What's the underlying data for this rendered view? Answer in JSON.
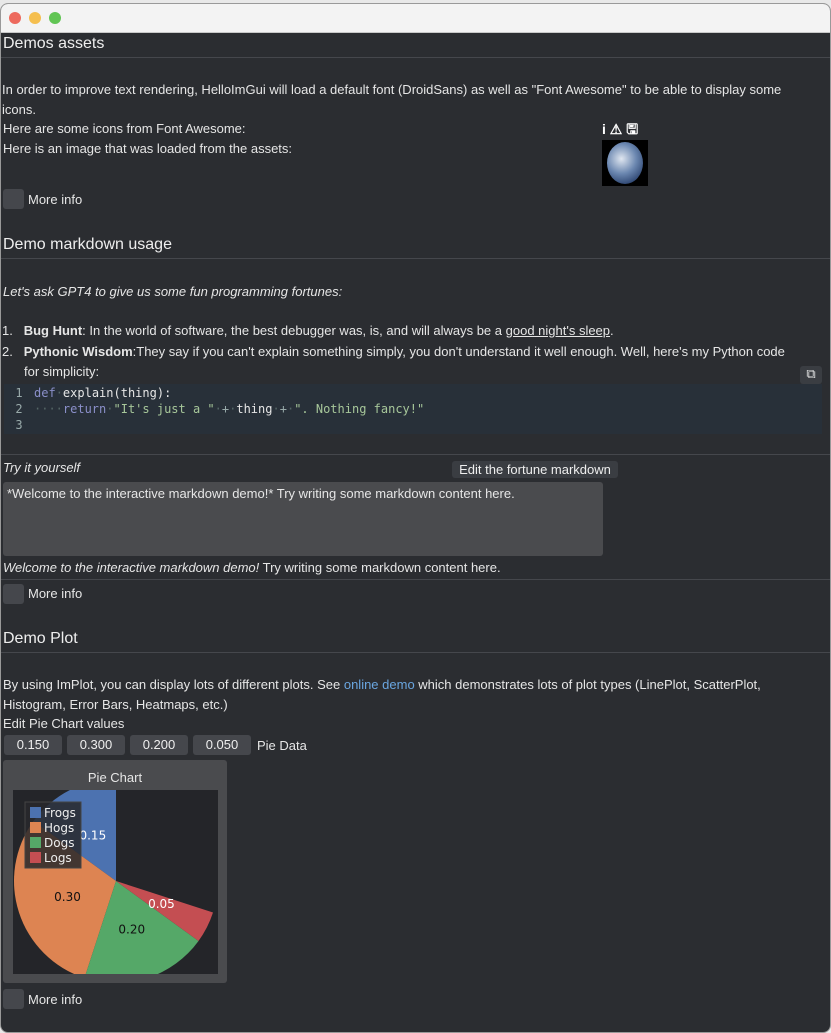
{
  "window": {
    "controls": [
      "close",
      "minimize",
      "maximize"
    ]
  },
  "assets": {
    "title": "Demos assets",
    "intro_line1": "In order to improve text rendering, HelloImGui will load a default font (DroidSans) as well as \"Font Awesome\" to be able to display some",
    "intro_line2": "icons.",
    "icons_label": "Here are some icons from Font Awesome:",
    "icons": [
      "info-icon",
      "warning-icon",
      "save-icon"
    ],
    "image_label": "Here is an image that was loaded from the assets:",
    "more_info": "More info"
  },
  "markdown": {
    "title": "Demo markdown usage",
    "intro": "Let's ask GPT4 to give us some fun programming fortunes:",
    "items": [
      {
        "num": "1.",
        "bold": "Bug Hunt",
        "text": ": In the world of software, the best debugger was, is, and will always be a ",
        "link": "good night's sleep",
        "after": "."
      },
      {
        "num": "2.",
        "bold": "Pythonic Wisdom",
        "text": ":They say if you can't explain something simply, you don't understand it well enough. Well, here's my Python code",
        "text2": "for simplicity:"
      }
    ],
    "code": {
      "line_numbers": [
        "1",
        "2",
        "3"
      ],
      "kw_def": "def",
      "fn": "explain(thing):",
      "ret": "return",
      "s1": "\"It's just a \"",
      "plus": "+",
      "var": "thing",
      "s2": "\". Nothing fancy!\""
    },
    "try_label": "Try it yourself",
    "edit_button": "Edit the fortune markdown",
    "input_value": "*Welcome to the interactive markdown demo!* Try writing some markdown content here.",
    "rendered_italic": "Welcome to the interactive markdown demo!",
    "rendered_rest": " Try writing some markdown content here.",
    "more_info": "More info"
  },
  "plot": {
    "title": "Demo Plot",
    "desc1_before": "By using ImPlot, you can display lots of different plots. See ",
    "desc1_link": "online demo",
    "desc1_after": " which demonstrates lots of plot types (LinePlot, ScatterPlot,",
    "desc2": "Histogram, Error Bars, Heatmaps, etc.)",
    "edit_label": "Edit Pie Chart values",
    "inputs": [
      "0.150",
      "0.300",
      "0.200",
      "0.050"
    ],
    "inputs_label": "Pie Data",
    "more_info": "More info"
  },
  "chart_data": {
    "type": "pie",
    "title": "Pie Chart",
    "categories": [
      "Frogs",
      "Hogs",
      "Dogs",
      "Logs"
    ],
    "values": [
      0.15,
      0.3,
      0.2,
      0.05
    ],
    "labels": [
      "0.15",
      "0.30",
      "0.20",
      "0.05"
    ],
    "colors": [
      "#4c72b0",
      "#dd8452",
      "#55a868",
      "#c44e52"
    ],
    "start_angle_deg": 90,
    "direction": "counterclockwise",
    "legend": "top-left"
  }
}
